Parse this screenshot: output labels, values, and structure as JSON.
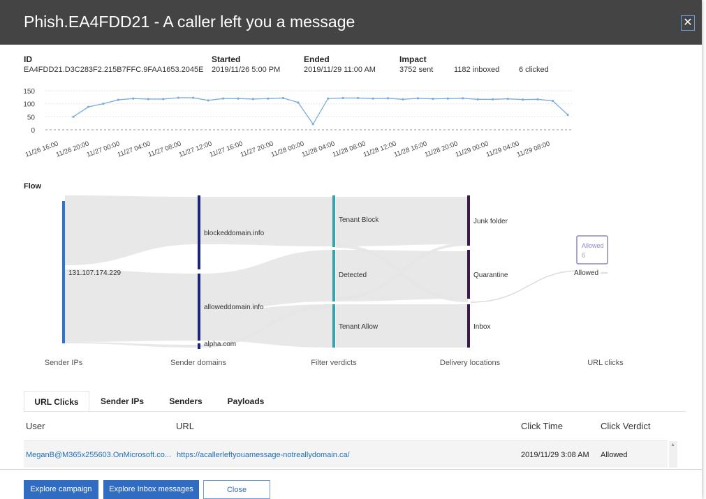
{
  "title": "Phish.EA4FDD21 - A caller left you a message",
  "meta": {
    "id_label": "ID",
    "id_value": "EA4FDD21.D3C283F2.215B7FFC.9FAA1653.2045E",
    "started_label": "Started",
    "started_value": "2019/11/26 5:00 PM",
    "ended_label": "Ended",
    "ended_value": "2019/11/29 11:00 AM",
    "impact_label": "Impact",
    "impact_sent": "3752 sent",
    "impact_inboxed": "1182 inboxed",
    "impact_clicked": "6 clicked"
  },
  "chart_data": {
    "type": "line",
    "ylim": [
      0,
      150
    ],
    "yticks": [
      "150",
      "100",
      "50",
      "0"
    ],
    "xticks": [
      "11/26 16:00",
      "11/26 20:00",
      "11/27 00:00",
      "11/27 04:00",
      "11/27 08:00",
      "11/27 12:00",
      "11/27 16:00",
      "11/27 20:00",
      "11/28 00:00",
      "11/28 04:00",
      "11/28 08:00",
      "11/28 12:00",
      "11/28 16:00",
      "11/28 20:00",
      "11/29 00:00",
      "11/29 04:00",
      "11/29 08:00"
    ],
    "series": [
      {
        "color": "#7aacdc",
        "values": [
          50,
          88,
          100,
          115,
          120,
          118,
          118,
          123,
          123,
          113,
          120,
          120,
          118,
          120,
          122,
          105,
          22,
          120,
          122,
          122,
          120,
          121,
          117,
          121,
          119,
          120,
          121,
          117,
          117,
          119,
          116,
          117,
          111,
          58
        ]
      }
    ]
  },
  "flow": {
    "label": "Flow",
    "nodes": {
      "sender_ip": "131.107.174.229",
      "blocked_domain": "blockeddomain.info",
      "allowed_domain": "alloweddomain.info",
      "alpha_domain": "alpha.com",
      "tenant_block": "Tenant Block",
      "detected": "Detected",
      "tenant_allow": "Tenant Allow",
      "junk": "Junk folder",
      "quarantine": "Quarantine",
      "inbox": "Inbox",
      "allowed": "Allowed"
    },
    "tooltip_title": "Allowed",
    "tooltip_value": "6",
    "columns": [
      "Sender IPs",
      "Sender domains",
      "Filter verdicts",
      "Delivery locations",
      "URL clicks"
    ],
    "colors": {
      "ip": "#2e74d0",
      "domain": "#1a237e",
      "verdict": "#3aa0aa",
      "delivery": "#3a1a4a",
      "band": "#e6e6e6"
    }
  },
  "tabs": [
    "URL Clicks",
    "Sender IPs",
    "Senders",
    "Payloads"
  ],
  "table": {
    "headers": [
      "User",
      "URL",
      "Click Time",
      "Click Verdict"
    ],
    "rows": [
      {
        "user": "MeganB@M365x255603.OnMicrosoft.co...",
        "url": "https://acallerleftyouamessage-notreallydomain.ca/",
        "time": "2019/11/29 3:08 AM",
        "verdict": "Allowed"
      }
    ]
  },
  "buttons": {
    "explore_campaign": "Explore campaign",
    "explore_inbox": "Explore Inbox messages",
    "close": "Close"
  }
}
